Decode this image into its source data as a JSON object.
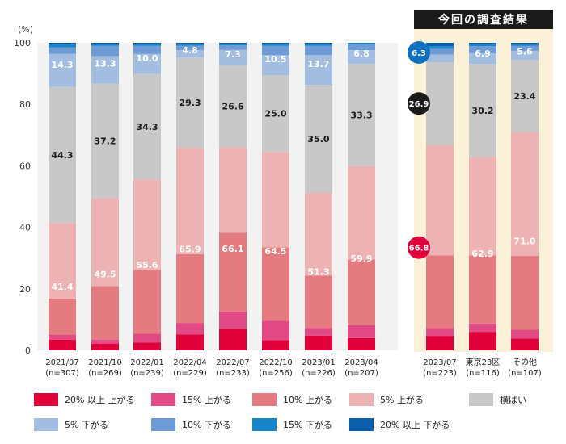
{
  "chart_data": {
    "type": "bar",
    "stacked": true,
    "percent": true,
    "yunit": "(%)",
    "ylim": [
      0,
      100
    ],
    "yticks": [
      0,
      20,
      40,
      60,
      80,
      100
    ],
    "grid": false,
    "legend_position": "bottom",
    "highlight_label": "今回の調査結果",
    "categories": [
      {
        "label": "2021/07",
        "n": "(n=307)"
      },
      {
        "label": "2021/10",
        "n": "(n=269)"
      },
      {
        "label": "2022/01",
        "n": "(n=239)"
      },
      {
        "label": "2022/04",
        "n": "(n=229)"
      },
      {
        "label": "2022/07",
        "n": "(n=233)"
      },
      {
        "label": "2022/10",
        "n": "(n=256)"
      },
      {
        "label": "2023/01",
        "n": "(n=226)"
      },
      {
        "label": "2023/04",
        "n": "(n=207)"
      },
      {
        "label": "2023/07",
        "n": "(n=223)"
      },
      {
        "label": "東京23区",
        "n": "(n=116)"
      },
      {
        "label": "その他",
        "n": "(n=107)"
      }
    ],
    "highlight_categories": [
      8,
      9,
      10
    ],
    "series": [
      {
        "name": "20% 以上 上がる",
        "color": "#e0003a",
        "values": [
          3.5,
          2.2,
          2.5,
          5.2,
          7.0,
          3.3,
          4.8,
          4.0,
          4.7,
          6.0,
          3.8
        ]
      },
      {
        "name": "15% 上がる",
        "color": "#e14a84",
        "values": [
          1.6,
          1.3,
          2.9,
          3.7,
          5.6,
          6.3,
          2.5,
          4.2,
          2.6,
          2.7,
          2.9
        ]
      },
      {
        "name": "10% 上がる",
        "color": "#e47b80",
        "values": [
          11.7,
          17.4,
          20.8,
          22.4,
          25.6,
          23.9,
          17.0,
          21.3,
          23.6,
          22.2,
          24.0
        ]
      },
      {
        "name": "5% 上がる",
        "color": "#edb2b3",
        "values": [
          24.6,
          28.6,
          29.4,
          34.6,
          27.9,
          31.0,
          27.0,
          30.4,
          35.9,
          32.0,
          40.3
        ]
      },
      {
        "name": "横ばい",
        "color": "#c8c8c8",
        "values": [
          44.3,
          37.2,
          34.3,
          29.3,
          26.6,
          25.0,
          35.0,
          33.3,
          26.9,
          30.2,
          23.4
        ]
      },
      {
        "name": "5% 下がる",
        "color": "#a3bde0",
        "values": [
          10.7,
          9.0,
          6.5,
          2.4,
          5.0,
          6.5,
          9.7,
          4.4,
          2.5,
          3.5,
          3.0
        ]
      },
      {
        "name": "10% 下がる",
        "color": "#6e9ad6",
        "values": [
          2.1,
          3.3,
          2.6,
          1.5,
          1.5,
          3.0,
          3.0,
          1.9,
          1.8,
          2.3,
          1.6
        ]
      },
      {
        "name": "15% 下がる",
        "color": "#1785c8",
        "values": [
          0.9,
          0.5,
          0.6,
          0.5,
          0.4,
          0.6,
          0.6,
          0.3,
          0.9,
          0.6,
          0.5
        ]
      },
      {
        "name": "20% 以上 下がる",
        "color": "#0a5fae",
        "values": [
          0.6,
          0.5,
          0.4,
          0.4,
          0.4,
          0.4,
          0.4,
          0.2,
          1.1,
          0.5,
          0.5
        ]
      }
    ],
    "group_labels": [
      {
        "group": "up",
        "values": [
          41.4,
          49.5,
          55.6,
          65.9,
          66.1,
          64.5,
          51.3,
          59.9,
          66.8,
          62.9,
          71.0
        ]
      },
      {
        "group": "flat",
        "values": [
          44.3,
          37.2,
          34.3,
          29.3,
          26.6,
          25.0,
          35.0,
          33.3,
          26.9,
          30.2,
          23.4
        ]
      },
      {
        "group": "down",
        "values": [
          14.3,
          13.3,
          10.0,
          4.8,
          7.3,
          10.5,
          13.7,
          6.8,
          6.3,
          6.9,
          5.6
        ]
      }
    ]
  }
}
